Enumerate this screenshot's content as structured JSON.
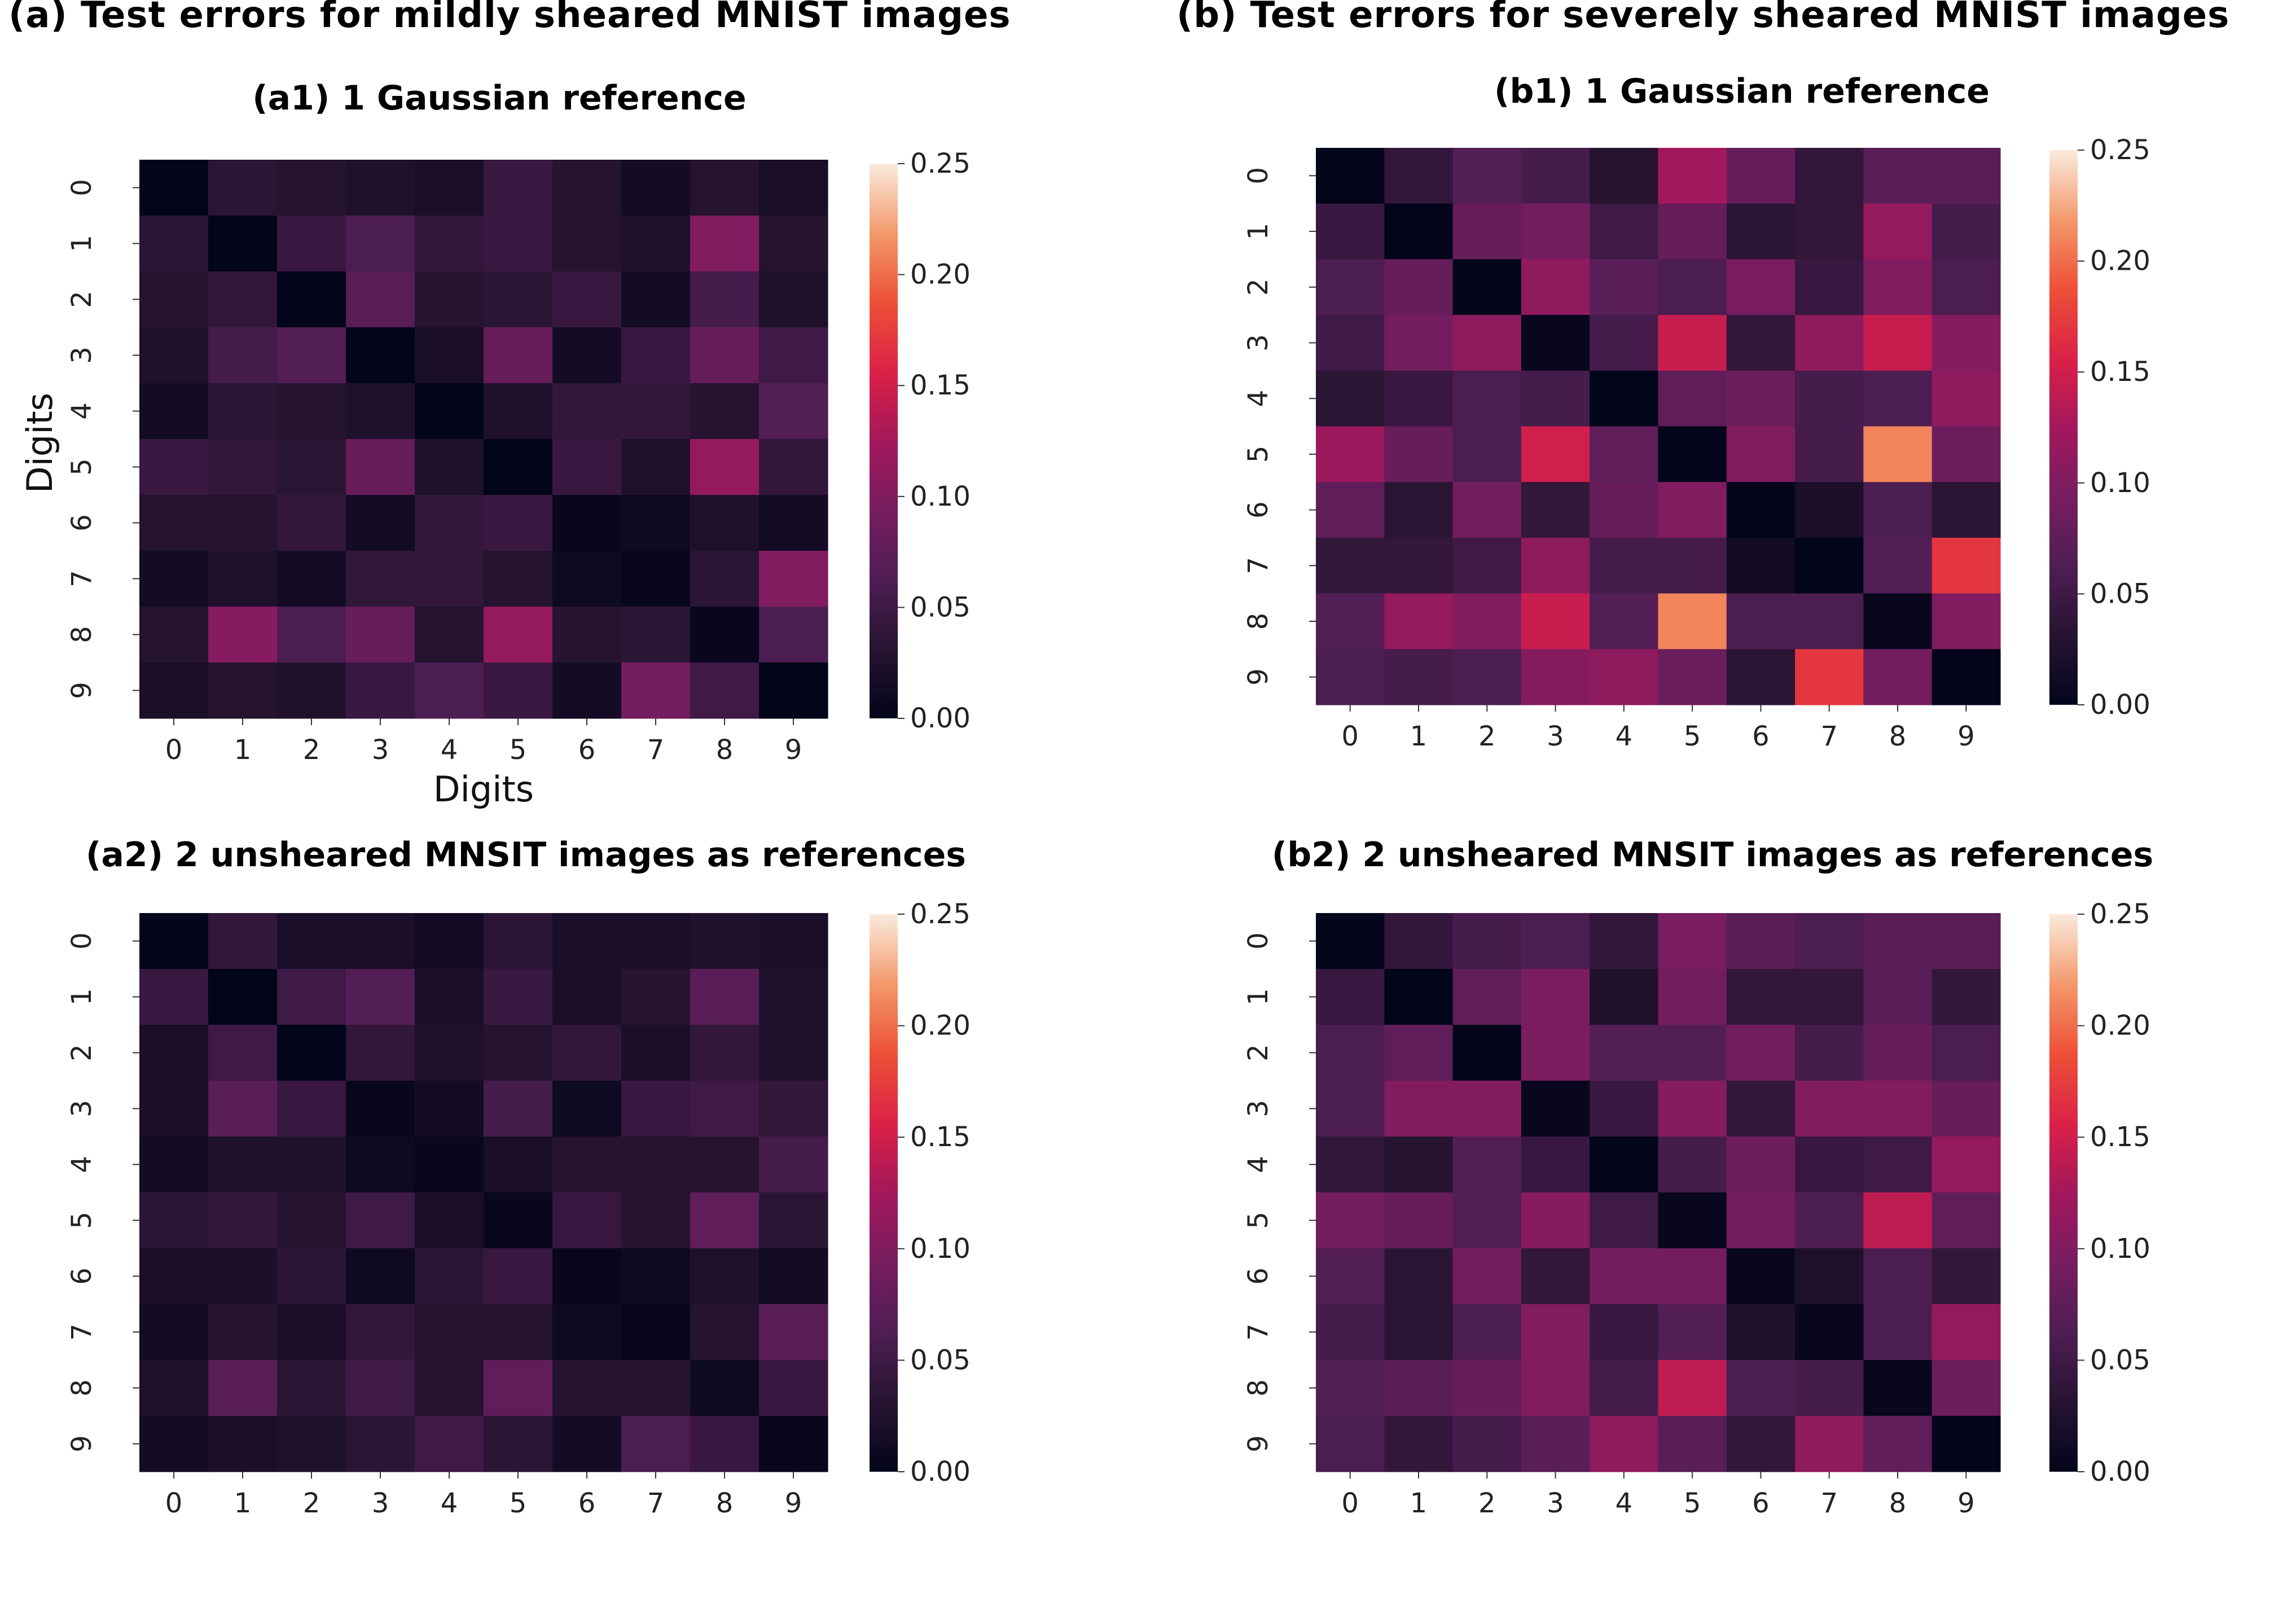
{
  "figure": {
    "title_a": "(a) Test errors for mildly sheared MNIST images",
    "title_b": "(b) Test errors for severely sheared MNIST images"
  },
  "chart_data": [
    {
      "type": "heatmap",
      "id": "a1",
      "title": "(a1) 1 Gaussian reference",
      "xlabel": "Digits",
      "ylabel": "Digits",
      "x_categories": [
        "0",
        "1",
        "2",
        "3",
        "4",
        "5",
        "6",
        "7",
        "8",
        "9"
      ],
      "y_categories": [
        "0",
        "1",
        "2",
        "3",
        "4",
        "5",
        "6",
        "7",
        "8",
        "9"
      ],
      "colorbar": {
        "vmin": 0.0,
        "vmax": 0.25,
        "ticks": [
          "0.00",
          "0.05",
          "0.10",
          "0.15",
          "0.20",
          "0.25"
        ]
      },
      "values": [
        [
          0.0,
          0.035,
          0.03,
          0.025,
          0.02,
          0.045,
          0.03,
          0.015,
          0.03,
          0.02
        ],
        [
          0.035,
          0.0,
          0.045,
          0.06,
          0.04,
          0.045,
          0.03,
          0.025,
          0.1,
          0.03
        ],
        [
          0.03,
          0.04,
          0.0,
          0.07,
          0.03,
          0.035,
          0.045,
          0.015,
          0.055,
          0.025
        ],
        [
          0.025,
          0.055,
          0.065,
          0.0,
          0.02,
          0.08,
          0.015,
          0.045,
          0.08,
          0.05
        ],
        [
          0.015,
          0.035,
          0.03,
          0.025,
          0.0,
          0.025,
          0.04,
          0.04,
          0.03,
          0.065
        ],
        [
          0.045,
          0.04,
          0.035,
          0.08,
          0.025,
          0.0,
          0.045,
          0.025,
          0.115,
          0.04
        ],
        [
          0.03,
          0.03,
          0.04,
          0.015,
          0.04,
          0.045,
          0.005,
          0.01,
          0.025,
          0.015
        ],
        [
          0.015,
          0.025,
          0.015,
          0.04,
          0.04,
          0.03,
          0.01,
          0.005,
          0.035,
          0.1
        ],
        [
          0.03,
          0.105,
          0.06,
          0.08,
          0.03,
          0.115,
          0.03,
          0.035,
          0.005,
          0.06
        ],
        [
          0.02,
          0.03,
          0.025,
          0.045,
          0.06,
          0.045,
          0.015,
          0.09,
          0.05,
          0.0
        ]
      ]
    },
    {
      "type": "heatmap",
      "id": "a2",
      "title": "(a2) 2 unsheared MNSIT images as references",
      "xlabel": "",
      "ylabel": "",
      "x_categories": [
        "0",
        "1",
        "2",
        "3",
        "4",
        "5",
        "6",
        "7",
        "8",
        "9"
      ],
      "y_categories": [
        "0",
        "1",
        "2",
        "3",
        "4",
        "5",
        "6",
        "7",
        "8",
        "9"
      ],
      "colorbar": {
        "vmin": 0.0,
        "vmax": 0.25,
        "ticks": [
          "0.00",
          "0.05",
          "0.10",
          "0.15",
          "0.20",
          "0.25"
        ]
      },
      "values": [
        [
          0.0,
          0.04,
          0.02,
          0.02,
          0.015,
          0.035,
          0.02,
          0.02,
          0.025,
          0.02
        ],
        [
          0.045,
          0.0,
          0.05,
          0.065,
          0.02,
          0.045,
          0.02,
          0.03,
          0.07,
          0.025
        ],
        [
          0.02,
          0.05,
          0.0,
          0.04,
          0.025,
          0.03,
          0.04,
          0.02,
          0.04,
          0.025
        ],
        [
          0.02,
          0.07,
          0.045,
          0.005,
          0.015,
          0.055,
          0.01,
          0.045,
          0.05,
          0.04
        ],
        [
          0.015,
          0.025,
          0.025,
          0.01,
          0.005,
          0.02,
          0.03,
          0.03,
          0.03,
          0.055
        ],
        [
          0.035,
          0.04,
          0.03,
          0.05,
          0.02,
          0.005,
          0.045,
          0.03,
          0.075,
          0.035
        ],
        [
          0.02,
          0.02,
          0.035,
          0.01,
          0.035,
          0.045,
          0.005,
          0.01,
          0.025,
          0.015
        ],
        [
          0.015,
          0.03,
          0.02,
          0.04,
          0.03,
          0.03,
          0.01,
          0.005,
          0.03,
          0.07
        ],
        [
          0.025,
          0.07,
          0.035,
          0.05,
          0.03,
          0.075,
          0.03,
          0.03,
          0.01,
          0.045
        ],
        [
          0.015,
          0.02,
          0.025,
          0.035,
          0.05,
          0.035,
          0.015,
          0.06,
          0.045,
          0.005
        ]
      ]
    },
    {
      "type": "heatmap",
      "id": "b1",
      "title": "(b1) 1 Gaussian reference",
      "xlabel": "",
      "ylabel": "",
      "x_categories": [
        "0",
        "1",
        "2",
        "3",
        "4",
        "5",
        "6",
        "7",
        "8",
        "9"
      ],
      "y_categories": [
        "0",
        "1",
        "2",
        "3",
        "4",
        "5",
        "6",
        "7",
        "8",
        "9"
      ],
      "colorbar": {
        "vmin": 0.0,
        "vmax": 0.25,
        "ticks": [
          "0.00",
          "0.05",
          "0.10",
          "0.15",
          "0.20",
          "0.25"
        ]
      },
      "values": [
        [
          0.0,
          0.04,
          0.065,
          0.055,
          0.03,
          0.125,
          0.08,
          0.04,
          0.07,
          0.07
        ],
        [
          0.045,
          0.0,
          0.08,
          0.09,
          0.05,
          0.08,
          0.035,
          0.04,
          0.115,
          0.055
        ],
        [
          0.06,
          0.08,
          0.0,
          0.11,
          0.07,
          0.06,
          0.095,
          0.045,
          0.1,
          0.06
        ],
        [
          0.05,
          0.09,
          0.11,
          0.005,
          0.055,
          0.145,
          0.04,
          0.11,
          0.145,
          0.105
        ],
        [
          0.035,
          0.045,
          0.06,
          0.055,
          0.0,
          0.075,
          0.085,
          0.055,
          0.06,
          0.11
        ],
        [
          0.12,
          0.08,
          0.06,
          0.15,
          0.075,
          0.0,
          0.1,
          0.055,
          0.21,
          0.085
        ],
        [
          0.075,
          0.035,
          0.09,
          0.04,
          0.08,
          0.1,
          0.0,
          0.02,
          0.06,
          0.035
        ],
        [
          0.04,
          0.04,
          0.05,
          0.11,
          0.055,
          0.055,
          0.015,
          0.0,
          0.065,
          0.17
        ],
        [
          0.065,
          0.115,
          0.1,
          0.145,
          0.065,
          0.21,
          0.06,
          0.06,
          0.005,
          0.1
        ],
        [
          0.06,
          0.055,
          0.06,
          0.105,
          0.11,
          0.085,
          0.035,
          0.17,
          0.09,
          0.0
        ]
      ]
    },
    {
      "type": "heatmap",
      "id": "b2",
      "title": "(b2) 2 unsheared MNSIT images as references",
      "xlabel": "",
      "ylabel": "",
      "x_categories": [
        "0",
        "1",
        "2",
        "3",
        "4",
        "5",
        "6",
        "7",
        "8",
        "9"
      ],
      "y_categories": [
        "0",
        "1",
        "2",
        "3",
        "4",
        "5",
        "6",
        "7",
        "8",
        "9"
      ],
      "colorbar": {
        "vmin": 0.0,
        "vmax": 0.25,
        "ticks": [
          "0.00",
          "0.05",
          "0.10",
          "0.15",
          "0.20",
          "0.25"
        ]
      },
      "values": [
        [
          0.0,
          0.04,
          0.055,
          0.06,
          0.04,
          0.095,
          0.07,
          0.06,
          0.07,
          0.07
        ],
        [
          0.045,
          0.0,
          0.075,
          0.095,
          0.025,
          0.09,
          0.04,
          0.04,
          0.07,
          0.04
        ],
        [
          0.06,
          0.075,
          0.0,
          0.095,
          0.065,
          0.065,
          0.09,
          0.055,
          0.08,
          0.06
        ],
        [
          0.06,
          0.1,
          0.1,
          0.005,
          0.045,
          0.105,
          0.04,
          0.1,
          0.1,
          0.08
        ],
        [
          0.04,
          0.03,
          0.065,
          0.045,
          0.0,
          0.055,
          0.085,
          0.045,
          0.05,
          0.115
        ],
        [
          0.09,
          0.08,
          0.065,
          0.105,
          0.05,
          0.005,
          0.09,
          0.06,
          0.14,
          0.075
        ],
        [
          0.065,
          0.035,
          0.09,
          0.04,
          0.09,
          0.09,
          0.005,
          0.025,
          0.06,
          0.04
        ],
        [
          0.055,
          0.035,
          0.06,
          0.1,
          0.045,
          0.065,
          0.025,
          0.005,
          0.06,
          0.115
        ],
        [
          0.065,
          0.07,
          0.08,
          0.1,
          0.055,
          0.14,
          0.06,
          0.055,
          0.005,
          0.085
        ],
        [
          0.06,
          0.04,
          0.055,
          0.07,
          0.11,
          0.07,
          0.04,
          0.11,
          0.075,
          0.0
        ]
      ]
    }
  ]
}
